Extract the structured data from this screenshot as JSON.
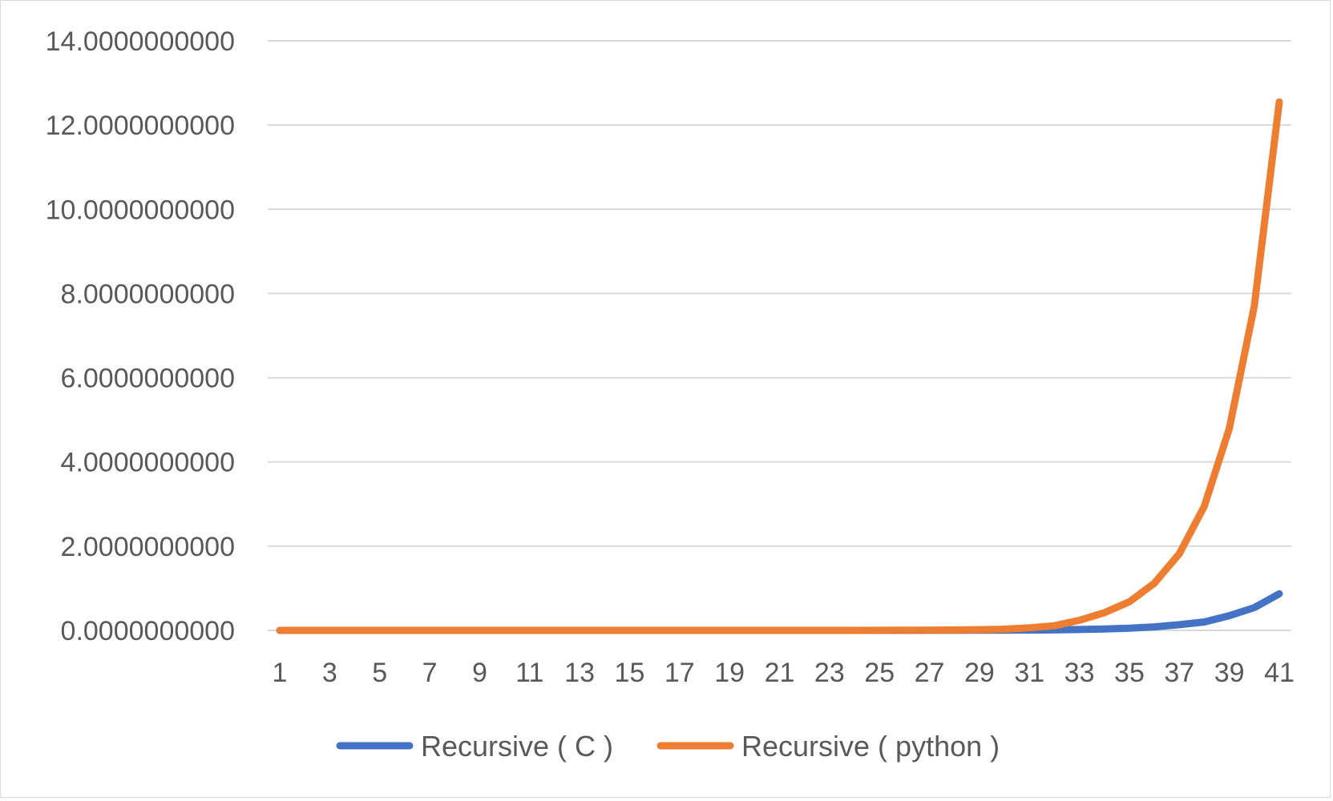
{
  "chart_data": {
    "type": "line",
    "title": "",
    "xlabel": "",
    "ylabel": "",
    "x": [
      1,
      2,
      3,
      4,
      5,
      6,
      7,
      8,
      9,
      10,
      11,
      12,
      13,
      14,
      15,
      16,
      17,
      18,
      19,
      20,
      21,
      22,
      23,
      24,
      25,
      26,
      27,
      28,
      29,
      30,
      31,
      32,
      33,
      34,
      35,
      36,
      37,
      38,
      39,
      40,
      41
    ],
    "x_tick_labels": [
      "1",
      "3",
      "5",
      "7",
      "9",
      "11",
      "13",
      "15",
      "17",
      "19",
      "21",
      "23",
      "25",
      "27",
      "29",
      "31",
      "33",
      "35",
      "37",
      "39",
      "41"
    ],
    "ylim": [
      0,
      14
    ],
    "y_ticks": [
      0,
      2,
      4,
      6,
      8,
      10,
      12,
      14
    ],
    "y_tick_labels": [
      "0.0000000000",
      "2.0000000000",
      "4.0000000000",
      "6.0000000000",
      "8.0000000000",
      "10.0000000000",
      "12.0000000000",
      "14.0000000000"
    ],
    "grid": "horizontal",
    "legend_position": "bottom",
    "series": [
      {
        "name": "Recursive ( C )",
        "color": "#4472c4",
        "values": [
          0,
          0,
          0,
          0,
          0,
          0,
          0,
          0,
          0,
          0,
          0,
          0,
          0,
          0,
          0,
          0,
          0,
          0,
          0,
          0,
          0,
          0,
          0,
          0,
          0,
          0,
          0.001,
          0.002,
          0.003,
          0.005,
          0.008,
          0.012,
          0.02,
          0.032,
          0.052,
          0.084,
          0.136,
          0.2,
          0.35,
          0.54,
          0.87
        ]
      },
      {
        "name": "Recursive ( python )",
        "color": "#ed7d31",
        "values": [
          0,
          0,
          0,
          0,
          0,
          0,
          0,
          0,
          0,
          0,
          0,
          0,
          0,
          0,
          0,
          0,
          0,
          0,
          0,
          0,
          0,
          0,
          0,
          0,
          0.002,
          0.004,
          0.006,
          0.01,
          0.017,
          0.028,
          0.06,
          0.11,
          0.24,
          0.42,
          0.68,
          1.12,
          1.82,
          2.95,
          4.8,
          7.7,
          12.55
        ]
      }
    ]
  }
}
